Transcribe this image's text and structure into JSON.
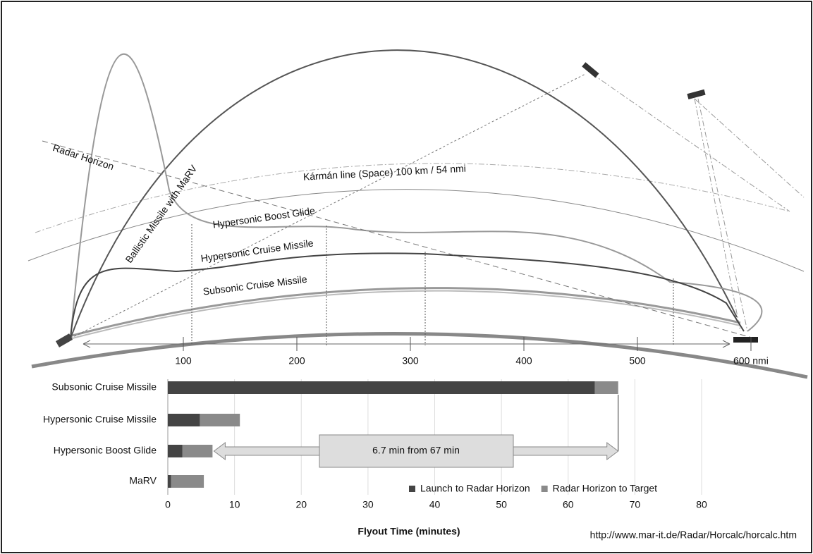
{
  "diagram": {
    "labels": {
      "radar_horizon": "Radar Horizon",
      "karman": "Kármán line (Space) 100 km / 54 nmi",
      "ballistic": "Ballistic Missile with MaRV",
      "boost_glide": "Hypersonic Boost Glide",
      "cruise": "Hypersonic Cruise Missile",
      "subsonic": "Subsonic Cruise Missile"
    },
    "distance_axis": {
      "xlim": [
        0,
        600
      ],
      "xticks": [
        100,
        200,
        300,
        400,
        500,
        {
          "value": 600,
          "label": "600 nmi"
        }
      ]
    }
  },
  "chart_data": {
    "type": "stacked-bar-horizontal",
    "x_label": "Flyout Time (minutes)",
    "categories": [
      "Subsonic Cruise Missile",
      "Hypersonic Cruise Missile",
      "Hypersonic Boost Glide",
      "MaRV"
    ],
    "series": [
      {
        "name": "Launch to Radar Horizon",
        "color": "#444444",
        "values": [
          64,
          4.8,
          2.2,
          0.5
        ]
      },
      {
        "name": "Radar Horizon to Target",
        "color": "#8a8a8a",
        "values": [
          3.5,
          6,
          4.5,
          4.9
        ]
      }
    ],
    "xlim": [
      0,
      80
    ],
    "xticks": [
      0,
      10,
      20,
      30,
      40,
      50,
      60,
      70,
      80
    ],
    "grid": true,
    "annotation": "6.7 min from 67 min",
    "source": "http://www.mar-it.de/Radar/Horcalc/horcalc.htm"
  }
}
